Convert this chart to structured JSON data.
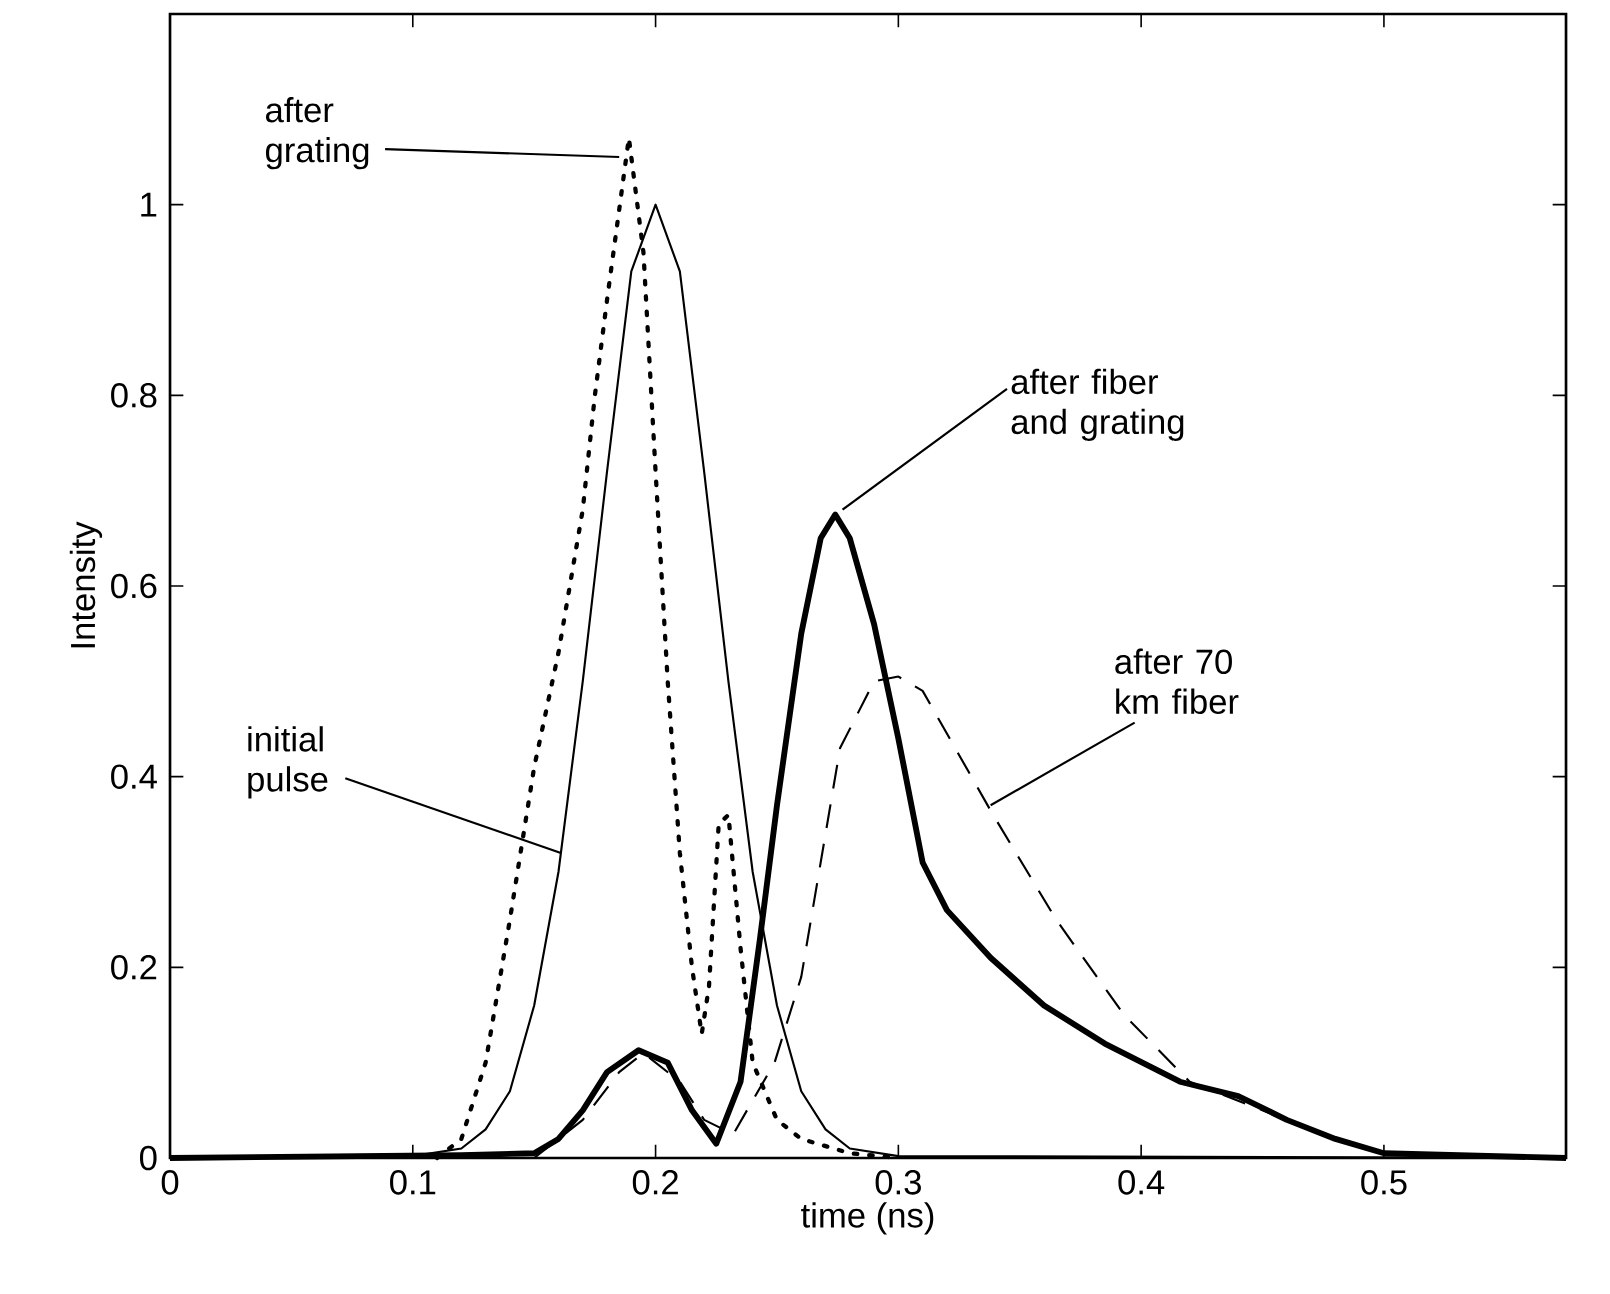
{
  "chart_data": {
    "type": "line",
    "xlabel": "time  (ns)",
    "ylabel": "Intensity",
    "xlim": [
      0,
      0.575
    ],
    "ylim": [
      0,
      1.2
    ],
    "xticks": [
      0,
      0.1,
      0.2,
      0.3,
      0.4,
      0.5
    ],
    "yticks": [
      0,
      0.2,
      0.4,
      0.6,
      0.8,
      1
    ],
    "grid": false,
    "legend": false,
    "marker": "none",
    "annotations": [
      {
        "text": "after grating",
        "x": 0.185,
        "y": 1.05
      },
      {
        "text": "initial pulse",
        "x": 0.161,
        "y": 0.32
      },
      {
        "text": "after fiber and grating",
        "x": 0.277,
        "y": 0.68
      },
      {
        "text": "after 70 km fiber",
        "x": 0.338,
        "y": 0.37
      }
    ],
    "series": [
      {
        "color": "#000000",
        "line_style": "dotted",
        "x": [
          0.11,
          0.12,
          0.13,
          0.14,
          0.15,
          0.16,
          0.17,
          0.175,
          0.18,
          0.189,
          0.195,
          0.2,
          0.205,
          0.21,
          0.215,
          0.219,
          0.222,
          0.226,
          0.23,
          0.235,
          0.24,
          0.25,
          0.26,
          0.28,
          0.3
        ],
        "values": [
          0,
          0.02,
          0.1,
          0.25,
          0.41,
          0.53,
          0.68,
          0.8,
          0.9,
          1.07,
          0.95,
          0.72,
          0.5,
          0.32,
          0.2,
          0.13,
          0.18,
          0.35,
          0.36,
          0.22,
          0.1,
          0.04,
          0.02,
          0.005,
          0
        ]
      },
      {
        "color": "#000000",
        "line_style": "solid",
        "x": [
          0,
          0.1,
          0.12,
          0.13,
          0.14,
          0.15,
          0.16,
          0.17,
          0.18,
          0.19,
          0.2,
          0.21,
          0.22,
          0.23,
          0.24,
          0.25,
          0.26,
          0.27,
          0.28,
          0.3,
          0.575
        ],
        "values": [
          0,
          0.002,
          0.01,
          0.03,
          0.07,
          0.16,
          0.3,
          0.5,
          0.72,
          0.93,
          1,
          0.93,
          0.72,
          0.5,
          0.3,
          0.16,
          0.07,
          0.03,
          0.01,
          0.002,
          0
        ]
      },
      {
        "color": "#000000",
        "line_style": "solid",
        "x": [
          0,
          0.12,
          0.15,
          0.16,
          0.17,
          0.18,
          0.193,
          0.205,
          0.215,
          0.225,
          0.235,
          0.243,
          0.25,
          0.26,
          0.268,
          0.274,
          0.28,
          0.29,
          0.3,
          0.31,
          0.32,
          0.338,
          0.36,
          0.385,
          0.416,
          0.44,
          0.46,
          0.48,
          0.5,
          0.575
        ],
        "values": [
          0,
          0.003,
          0.005,
          0.02,
          0.05,
          0.09,
          0.113,
          0.1,
          0.05,
          0.015,
          0.08,
          0.23,
          0.37,
          0.55,
          0.65,
          0.675,
          0.65,
          0.56,
          0.44,
          0.31,
          0.26,
          0.21,
          0.16,
          0.12,
          0.08,
          0.065,
          0.04,
          0.02,
          0.005,
          0
        ]
      },
      {
        "color": "#000000",
        "line_style": "dashed",
        "x": [
          0.15,
          0.17,
          0.185,
          0.195,
          0.21,
          0.22,
          0.232,
          0.249,
          0.26,
          0.276,
          0.29,
          0.3,
          0.31,
          0.339,
          0.365,
          0.393,
          0.42,
          0.45,
          0.48,
          0.5,
          0.575
        ],
        "values": [
          0,
          0.04,
          0.09,
          0.11,
          0.08,
          0.04,
          0.025,
          0.1,
          0.19,
          0.43,
          0.5,
          0.505,
          0.49,
          0.36,
          0.25,
          0.15,
          0.08,
          0.05,
          0.02,
          0.005,
          0
        ]
      }
    ]
  }
}
